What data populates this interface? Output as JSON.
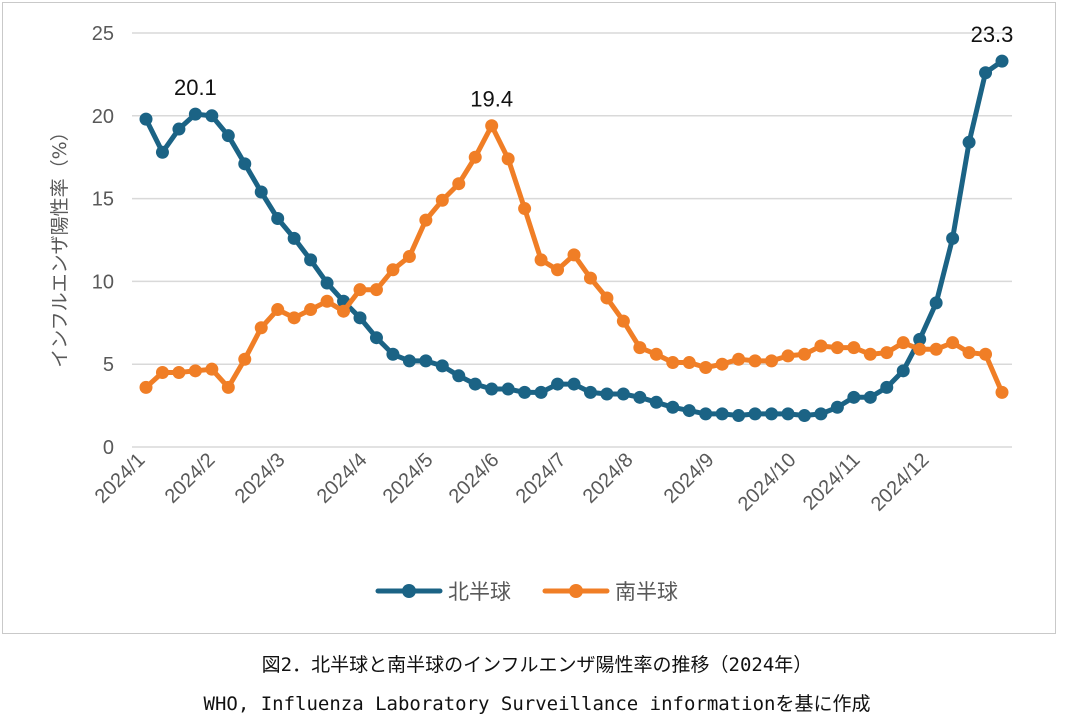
{
  "chart_data": {
    "type": "line",
    "ylabel": "インフルエンザ陽性率（%）",
    "ylim": [
      0,
      25
    ],
    "yticks": [
      0,
      5,
      10,
      15,
      20,
      25
    ],
    "xticks": [
      "2024/1",
      "2024/2",
      "2024/3",
      "2024/4",
      "2024/5",
      "2024/6",
      "2024/7",
      "2024/8",
      "2024/9",
      "2024/10",
      "2024/11",
      "2024/12"
    ],
    "grid": "horizontal",
    "legend_position": "bottom",
    "series": [
      {
        "name": "北半球",
        "color": "#1b6385",
        "values": [
          19.8,
          17.8,
          19.2,
          20.1,
          20.0,
          18.8,
          17.1,
          15.4,
          13.8,
          12.6,
          11.3,
          9.9,
          8.8,
          7.8,
          6.6,
          5.6,
          5.2,
          5.2,
          4.9,
          4.3,
          3.8,
          3.5,
          3.5,
          3.3,
          3.3,
          3.8,
          3.8,
          3.3,
          3.2,
          3.2,
          3.0,
          2.7,
          2.4,
          2.2,
          2.0,
          2.0,
          1.9,
          2.0,
          2.0,
          2.0,
          1.9,
          2.0,
          2.4,
          3.0,
          3.0,
          3.6,
          4.6,
          6.5,
          8.7,
          12.6,
          18.4,
          22.6,
          23.3
        ]
      },
      {
        "name": "南半球",
        "color": "#f07e26",
        "values": [
          3.6,
          4.5,
          4.5,
          4.6,
          4.7,
          3.6,
          5.3,
          7.2,
          8.3,
          7.8,
          8.3,
          8.8,
          8.2,
          9.5,
          9.5,
          10.7,
          11.5,
          13.7,
          14.9,
          15.9,
          17.5,
          19.4,
          17.4,
          14.4,
          11.3,
          10.7,
          11.6,
          10.2,
          9.0,
          7.6,
          6.0,
          5.6,
          5.1,
          5.1,
          4.8,
          5.0,
          5.3,
          5.2,
          5.2,
          5.5,
          5.6,
          6.1,
          6.0,
          6.0,
          5.6,
          5.7,
          6.3,
          5.9,
          5.9,
          6.3,
          5.7,
          5.6,
          3.3
        ]
      }
    ],
    "annotations": [
      {
        "series": 0,
        "index": 3,
        "text": "20.1"
      },
      {
        "series": 1,
        "index": 21,
        "text": "19.4"
      },
      {
        "series": 0,
        "index": 52,
        "text": "23.3"
      }
    ]
  },
  "caption": {
    "line1": "図2．北半球と南半球のインフルエンザ陽性率の推移（2024年）",
    "line2": "WHO, Influenza Laboratory Surveillance informationを基に作成"
  }
}
